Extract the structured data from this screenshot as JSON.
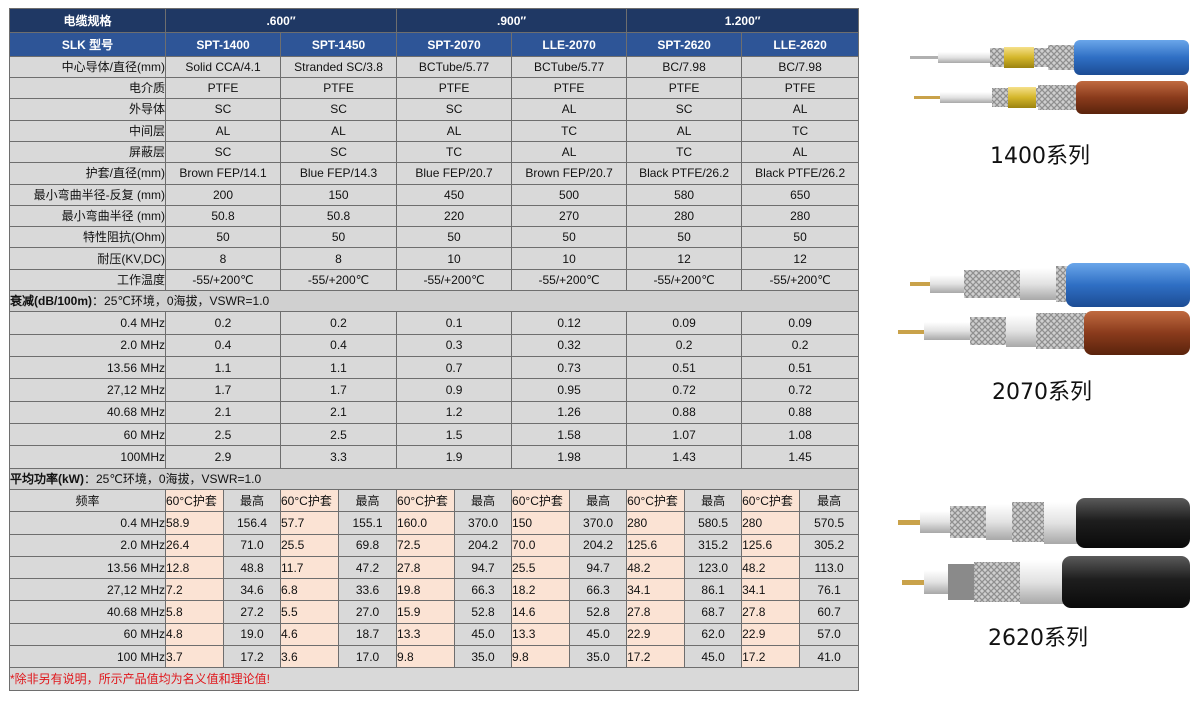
{
  "table": {
    "corner_label": "电缆规格",
    "size_groups": [
      ".600″",
      ".900″",
      "1.200″"
    ],
    "model_label": "SLK 型号",
    "models": [
      "SPT-1400",
      "SPT-1450",
      "SPT-2070",
      "LLE-2070",
      "SPT-2620",
      "LLE-2620"
    ],
    "spec_rows": [
      {
        "label": "中心导体/直径(mm)",
        "values": [
          "Solid CCA/4.1",
          "Stranded SC/3.8",
          "BCTube/5.77",
          "BCTube/5.77",
          "BC/7.98",
          "BC/7.98"
        ]
      },
      {
        "label": "电介质",
        "values": [
          "PTFE",
          "PTFE",
          "PTFE",
          "PTFE",
          "PTFE",
          "PTFE"
        ]
      },
      {
        "label": "外导体",
        "values": [
          "SC",
          "SC",
          "SC",
          "AL",
          "SC",
          "AL"
        ]
      },
      {
        "label": "中间层",
        "values": [
          "AL",
          "AL",
          "AL",
          "TC",
          "AL",
          "TC"
        ]
      },
      {
        "label": "屏蔽层",
        "values": [
          "SC",
          "SC",
          "TC",
          "AL",
          "TC",
          "AL"
        ]
      },
      {
        "label": "护套/直径(mm)",
        "values": [
          "Brown FEP/14.1",
          "Blue FEP/14.3",
          "Blue FEP/20.7",
          "Brown FEP/20.7",
          "Black PTFE/26.2",
          "Black PTFE/26.2"
        ]
      },
      {
        "label": "最小弯曲半径-反复 (mm)",
        "values": [
          "200",
          "150",
          "450",
          "500",
          "580",
          "650"
        ]
      },
      {
        "label": "最小弯曲半径 (mm)",
        "values": [
          "50.8",
          "50.8",
          "220",
          "270",
          "280",
          "280"
        ]
      },
      {
        "label": "特性阻抗(Ohm)",
        "values": [
          "50",
          "50",
          "50",
          "50",
          "50",
          "50"
        ]
      },
      {
        "label": "耐压(KV,DC)",
        "values": [
          "8",
          "8",
          "10",
          "10",
          "12",
          "12"
        ]
      },
      {
        "label": "工作温度",
        "values": [
          "-55/+200℃",
          "-55/+200℃",
          "-55/+200℃",
          "-55/+200℃",
          "-55/+200℃",
          "-55/+200℃"
        ]
      }
    ],
    "attenuation": {
      "title_bold": "衰减(dB/100m)",
      "title_rest": "：25℃环境，0海拔，VSWR=1.0",
      "rows": [
        {
          "label": "0.4 MHz",
          "values": [
            "0.2",
            "0.2",
            "0.1",
            "0.12",
            "0.09",
            "0.09"
          ]
        },
        {
          "label": "2.0 MHz",
          "values": [
            "0.4",
            "0.4",
            "0.3",
            "0.32",
            "0.2",
            "0.2"
          ]
        },
        {
          "label": "13.56 MHz",
          "values": [
            "1.1",
            "1.1",
            "0.7",
            "0.73",
            "0.51",
            "0.51"
          ]
        },
        {
          "label": "27,12 MHz",
          "values": [
            "1.7",
            "1.7",
            "0.9",
            "0.95",
            "0.72",
            "0.72"
          ]
        },
        {
          "label": "40.68 MHz",
          "values": [
            "2.1",
            "2.1",
            "1.2",
            "1.26",
            "0.88",
            "0.88"
          ]
        },
        {
          "label": "60 MHz",
          "values": [
            "2.5",
            "2.5",
            "1.5",
            "1.58",
            "1.07",
            "1.08"
          ]
        },
        {
          "label": "100MHz",
          "values": [
            "2.9",
            "3.3",
            "1.9",
            "1.98",
            "1.43",
            "1.45"
          ]
        }
      ]
    },
    "power": {
      "title_bold": "平均功率(kW)",
      "title_rest": "：25℃环境，0海拔，VSWR=1.0",
      "freq_label": "频率",
      "sub_60": "60°C护套",
      "sub_max": "最高",
      "rows": [
        {
          "label": "0.4 MHz",
          "values": [
            "58.9",
            "156.4",
            "57.7",
            "155.1",
            "160.0",
            "370.0",
            "150",
            "370.0",
            "280",
            "580.5",
            "280",
            "570.5"
          ]
        },
        {
          "label": "2.0 MHz",
          "values": [
            "26.4",
            "71.0",
            "25.5",
            "69.8",
            "72.5",
            "204.2",
            "70.0",
            "204.2",
            "125.6",
            "315.2",
            "125.6",
            "305.2"
          ]
        },
        {
          "label": "13.56 MHz",
          "values": [
            "12.8",
            "48.8",
            "11.7",
            "47.2",
            "27.8",
            "94.7",
            "25.5",
            "94.7",
            "48.2",
            "123.0",
            "48.2",
            "113.0"
          ]
        },
        {
          "label": "27,12 MHz",
          "values": [
            "7.2",
            "34.6",
            "6.8",
            "33.6",
            "19.8",
            "66.3",
            "18.2",
            "66.3",
            "34.1",
            "86.1",
            "34.1",
            "76.1"
          ]
        },
        {
          "label": "40.68 MHz",
          "values": [
            "5.8",
            "27.2",
            "5.5",
            "27.0",
            "15.9",
            "52.8",
            "14.6",
            "52.8",
            "27.8",
            "68.7",
            "27.8",
            "60.7"
          ]
        },
        {
          "label": "60 MHz",
          "values": [
            "4.8",
            "19.0",
            "4.6",
            "18.7",
            "13.3",
            "45.0",
            "13.3",
            "45.0",
            "22.9",
            "62.0",
            "22.9",
            "57.0"
          ]
        },
        {
          "label": "100 MHz",
          "values": [
            "3.7",
            "17.2",
            "3.6",
            "17.0",
            "9.8",
            "35.0",
            "9.8",
            "35.0",
            "17.2",
            "45.0",
            "17.2",
            "41.0"
          ]
        }
      ]
    },
    "note": "*除非另有说明，所示产品值均为名义值和理论值!"
  },
  "series": [
    {
      "label": "1400系列",
      "jackets": [
        "#2f6fc4",
        "#8a3b1c"
      ]
    },
    {
      "label": "2070系列",
      "jackets": [
        "#2f6fc4",
        "#7a2e10"
      ]
    },
    {
      "label": "2620系列",
      "jackets": [
        "#1a1a1a",
        "#1a1a1a"
      ]
    }
  ],
  "colors": {
    "header_dark": "#1f3864",
    "header_blue": "#2e5597",
    "cell_grey": "#d9d9d9",
    "cell_peach": "#fbe3d4",
    "note_red": "#e0161b"
  }
}
